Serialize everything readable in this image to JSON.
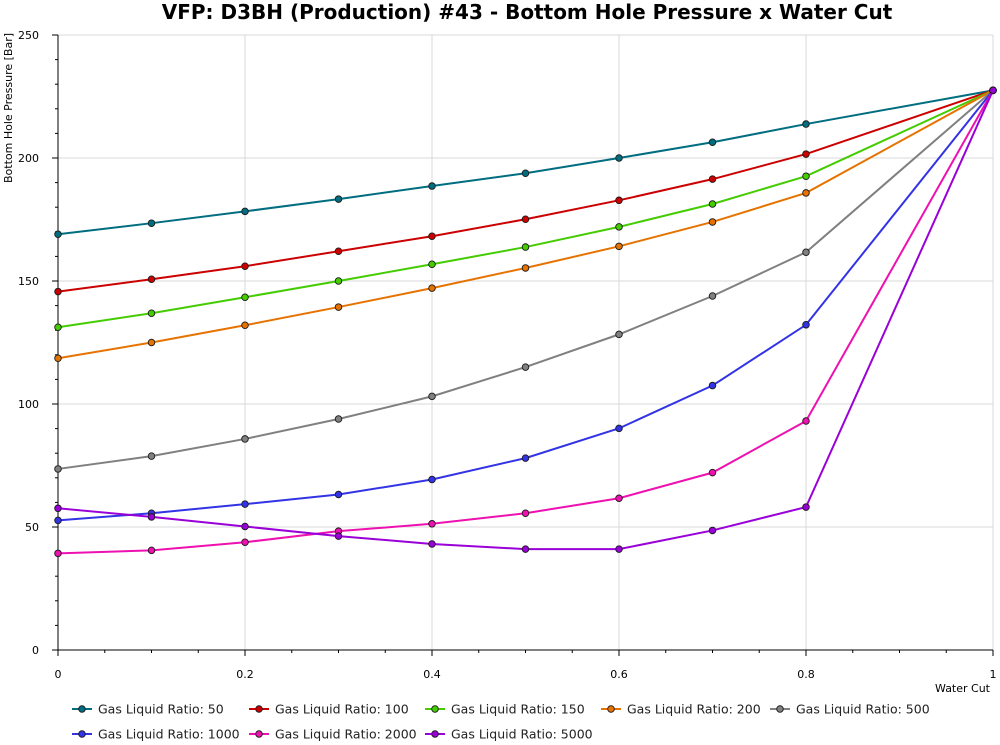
{
  "chart_data": {
    "type": "line",
    "title": "VFP: D3BH (Production) #43 - Bottom Hole Pressure x Water Cut",
    "xlabel": "Water Cut",
    "ylabel": "Bottom Hole Pressure [Bar]",
    "xlim": [
      0,
      1
    ],
    "ylim": [
      0,
      250
    ],
    "x_ticks": [
      0,
      0.2,
      0.4,
      0.6,
      0.8,
      1
    ],
    "x_tick_labels": [
      "0",
      "0.2",
      "0.4",
      "0.6",
      "0.8",
      "1"
    ],
    "y_ticks": [
      0,
      50,
      100,
      150,
      200,
      250
    ],
    "y_tick_labels": [
      "0",
      "50",
      "100",
      "150",
      "200",
      "250"
    ],
    "grid": true,
    "legend_position": "bottom",
    "x": [
      0,
      0.1,
      0.2,
      0.3,
      0.4,
      0.5,
      0.6,
      0.7,
      0.8,
      1.0
    ],
    "series": [
      {
        "name": "Gas Liquid Ratio: 50",
        "color": "#006d80",
        "values": [
          169,
          173.5,
          178.3,
          183.3,
          188.6,
          193.8,
          200,
          206.4,
          213.8,
          227.5
        ]
      },
      {
        "name": "Gas Liquid Ratio: 100",
        "color": "#cc0000",
        "values": [
          145.7,
          150.7,
          156,
          162.1,
          168.2,
          175.1,
          182.8,
          191.4,
          201.6,
          227.5
        ]
      },
      {
        "name": "Gas Liquid Ratio: 150",
        "color": "#44cc00",
        "values": [
          131.2,
          136.9,
          143.4,
          150,
          156.8,
          163.8,
          172,
          181.3,
          192.6,
          227.5
        ]
      },
      {
        "name": "Gas Liquid Ratio: 200",
        "color": "#e67300",
        "values": [
          118.6,
          125,
          132,
          139.4,
          147.1,
          155.3,
          164.1,
          174,
          185.8,
          227.5
        ]
      },
      {
        "name": "Gas Liquid Ratio: 500",
        "color": "#808080",
        "values": [
          73.6,
          78.8,
          85.8,
          93.9,
          103.1,
          115,
          128.3,
          143.9,
          161.7,
          227.5
        ]
      },
      {
        "name": "Gas Liquid Ratio: 1000",
        "color": "#3333e6",
        "values": [
          52.7,
          55.6,
          59.3,
          63.2,
          69.3,
          78,
          90.1,
          107.5,
          132.2,
          227.5
        ]
      },
      {
        "name": "Gas Liquid Ratio: 2000",
        "color": "#ee10b0",
        "values": [
          39.3,
          40.5,
          43.8,
          48.3,
          51.3,
          55.6,
          61.7,
          72.1,
          93.1,
          227.5
        ]
      },
      {
        "name": "Gas Liquid Ratio: 5000",
        "color": "#9a00d8",
        "values": [
          57.6,
          54.1,
          50.2,
          46.3,
          43.1,
          41,
          41,
          48.6,
          58.1,
          227.5
        ]
      }
    ]
  }
}
